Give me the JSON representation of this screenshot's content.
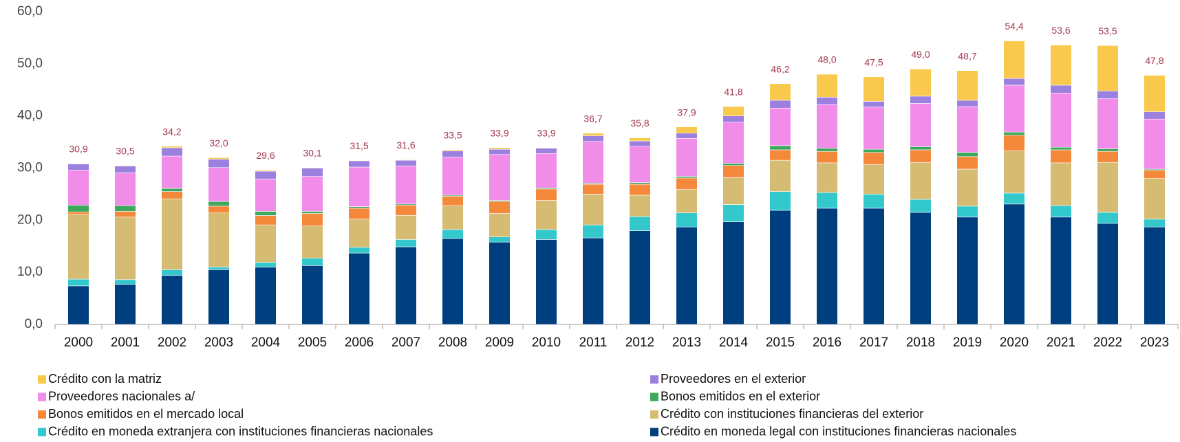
{
  "chart_data": {
    "type": "stacked_bar",
    "categories": [
      "2000",
      "2001",
      "2002",
      "2003",
      "2004",
      "2005",
      "2006",
      "2007",
      "2008",
      "2009",
      "2010",
      "2011",
      "2012",
      "2013",
      "2014",
      "2015",
      "2016",
      "2017",
      "2018",
      "2019",
      "2020",
      "2021",
      "2022",
      "2023"
    ],
    "ylim": [
      0,
      60
    ],
    "yticks": [
      {
        "value": 0,
        "label": "0,0"
      },
      {
        "value": 10,
        "label": "10,0"
      },
      {
        "value": 20,
        "label": "20,0"
      },
      {
        "value": 30,
        "label": "30,0"
      },
      {
        "value": 40,
        "label": "40,0"
      },
      {
        "value": 50,
        "label": "50,0"
      },
      {
        "value": 60,
        "label": "60,0"
      }
    ],
    "series": [
      {
        "name": "Crédito en moneda legal con instituciones financieras nacionales",
        "color": "#003f7f",
        "values": [
          7.4,
          7.7,
          9.4,
          10.5,
          11.0,
          11.3,
          13.7,
          14.9,
          16.5,
          15.8,
          16.3,
          16.6,
          18.0,
          18.7,
          19.7,
          21.9,
          22.3,
          22.3,
          21.5,
          20.6,
          23.1,
          20.6,
          19.4,
          18.7
        ]
      },
      {
        "name": "Crédito en moneda extranjera con instituciones financieras nacionales",
        "color": "#33c9cc",
        "values": [
          1.3,
          0.9,
          1.1,
          0.5,
          0.9,
          1.4,
          1.1,
          1.4,
          1.7,
          1.0,
          1.9,
          2.5,
          2.7,
          2.7,
          3.3,
          3.6,
          3.0,
          2.7,
          2.5,
          2.1,
          2.1,
          2.2,
          2.1,
          1.5
        ]
      },
      {
        "name": "Crédito con instituciones financieras del exterior",
        "color": "#d6bb72",
        "values": [
          12.4,
          12.0,
          13.6,
          10.4,
          7.2,
          6.2,
          5.4,
          4.6,
          4.6,
          4.5,
          5.6,
          5.9,
          4.1,
          4.5,
          5.2,
          6.0,
          5.7,
          5.7,
          7.1,
          7.1,
          8.1,
          8.2,
          9.6,
          7.8
        ]
      },
      {
        "name": "Bonos emitidos en el mercado local",
        "color": "#f5893b",
        "values": [
          0.5,
          1.1,
          1.4,
          1.3,
          1.8,
          2.4,
          2.1,
          2.0,
          1.8,
          2.3,
          2.2,
          1.9,
          2.1,
          2.2,
          2.3,
          2.0,
          2.2,
          2.3,
          2.4,
          2.4,
          3.0,
          2.5,
          2.1,
          1.6
        ]
      },
      {
        "name": "Bonos emitidos en el exterior",
        "color": "#3ea85c",
        "values": [
          1.3,
          1.1,
          0.6,
          0.9,
          0.8,
          0.4,
          0.3,
          0.2,
          0.2,
          0.2,
          0.2,
          0.2,
          0.3,
          0.3,
          0.4,
          0.8,
          0.6,
          0.6,
          0.6,
          0.8,
          0.6,
          0.5,
          0.5,
          0.2
        ]
      },
      {
        "name": "Proveedores nacionales a/",
        "color": "#f28ce9",
        "values": [
          6.7,
          6.3,
          6.2,
          6.5,
          6.2,
          6.7,
          7.6,
          7.3,
          7.3,
          8.8,
          6.6,
          8.0,
          7.0,
          7.3,
          7.9,
          7.2,
          8.4,
          8.1,
          8.3,
          8.8,
          9.0,
          10.4,
          9.6,
          9.6
        ]
      },
      {
        "name": "Proveedores  en el exterior",
        "color": "#9b80e0",
        "values": [
          1.2,
          1.3,
          1.6,
          1.6,
          1.5,
          1.6,
          1.2,
          1.1,
          1.2,
          1.0,
          1.0,
          1.1,
          1.0,
          1.0,
          1.2,
          1.5,
          1.4,
          1.1,
          1.4,
          1.2,
          1.3,
          1.5,
          1.5,
          1.4
        ]
      },
      {
        "name": "Crédito con la matriz",
        "color": "#f8c94c",
        "values": [
          0.1,
          0.1,
          0.3,
          0.3,
          0.2,
          0.1,
          0.1,
          0.1,
          0.2,
          0.3,
          0.1,
          0.5,
          0.6,
          1.2,
          1.8,
          3.2,
          4.4,
          4.7,
          5.2,
          5.7,
          7.2,
          7.7,
          8.7,
          7.0
        ]
      }
    ],
    "totals": [
      30.9,
      30.5,
      34.2,
      32.0,
      29.6,
      30.1,
      31.5,
      31.6,
      33.5,
      33.9,
      33.9,
      36.7,
      35.8,
      37.9,
      41.8,
      46.2,
      48.0,
      47.5,
      49.0,
      48.7,
      54.4,
      53.6,
      53.5,
      47.8
    ],
    "total_labels": [
      "30,9",
      "30,5",
      "34,2",
      "32,0",
      "29,6",
      "30,1",
      "31,5",
      "31,6",
      "33,5",
      "33,9",
      "33,9",
      "36,7",
      "35,8",
      "37,9",
      "41,8",
      "46,2",
      "48,0",
      "47,5",
      "49,0",
      "48,7",
      "54,4",
      "53,6",
      "53,5",
      "47,8"
    ]
  }
}
